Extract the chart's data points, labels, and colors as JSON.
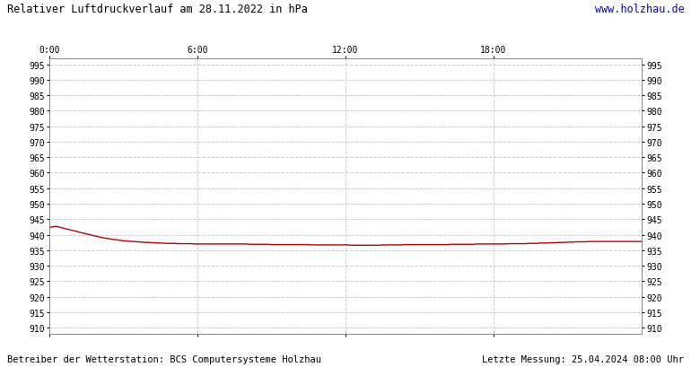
{
  "title": "Relativer Luftdruckverlauf am 28.11.2022 in hPa",
  "url": "www.holzhau.de",
  "footer_left": "Betreiber der Wetterstation: BCS Computersysteme Holzhau",
  "footer_right": "Letzte Messung: 25.04.2024 08:00 Uhr",
  "ylim": [
    908,
    997
  ],
  "yticks": [
    910,
    915,
    920,
    925,
    930,
    935,
    940,
    945,
    950,
    955,
    960,
    965,
    970,
    975,
    980,
    985,
    990,
    995
  ],
  "xtick_labels": [
    "0:00",
    "6:00",
    "12:00",
    "18:00"
  ],
  "line_color": "#bb0000",
  "bg_color": "#ffffff",
  "plot_bg_color": "#ffffff",
  "grid_color": "#cccccc",
  "title_color": "#000000",
  "url_color": "#0000cc",
  "pressure_values": [
    942.3,
    942.5,
    942.6,
    942.7,
    942.5,
    942.4,
    942.2,
    942.0,
    941.8,
    941.7,
    941.5,
    941.3,
    941.2,
    941.0,
    940.8,
    940.6,
    940.5,
    940.3,
    940.1,
    940.0,
    939.8,
    939.6,
    939.5,
    939.3,
    939.2,
    939.0,
    938.9,
    938.8,
    938.7,
    938.6,
    938.5,
    938.4,
    938.3,
    938.2,
    938.1,
    938.0,
    938.0,
    937.9,
    937.9,
    937.8,
    937.8,
    937.7,
    937.7,
    937.6,
    937.6,
    937.5,
    937.5,
    937.5,
    937.4,
    937.4,
    937.4,
    937.3,
    937.3,
    937.3,
    937.2,
    937.2,
    937.2,
    937.2,
    937.2,
    937.2,
    937.1,
    937.1,
    937.1,
    937.1,
    937.1,
    937.1,
    937.1,
    937.1,
    937.0,
    937.0,
    937.0,
    937.0,
    937.0,
    937.0,
    937.0,
    937.0,
    937.0,
    937.0,
    937.0,
    937.0,
    937.0,
    937.0,
    937.0,
    937.0,
    937.0,
    937.0,
    937.0,
    937.0,
    937.0,
    937.0,
    937.0,
    937.0,
    937.0,
    937.0,
    936.9,
    936.9,
    936.9,
    936.9,
    936.9,
    936.9,
    936.9,
    936.9,
    936.9,
    936.9,
    936.8,
    936.8,
    936.8,
    936.8,
    936.8,
    936.8,
    936.8,
    936.8,
    936.8,
    936.8,
    936.8,
    936.8,
    936.8,
    936.8,
    936.8,
    936.8,
    936.8,
    936.8,
    936.8,
    936.7,
    936.7,
    936.7,
    936.7,
    936.7,
    936.7,
    936.7,
    936.7,
    936.7,
    936.7,
    936.7,
    936.7,
    936.7,
    936.7,
    936.7,
    936.7,
    936.7,
    936.7,
    936.7,
    936.6,
    936.6,
    936.6,
    936.6,
    936.6,
    936.6,
    936.6,
    936.6,
    936.6,
    936.6,
    936.6,
    936.6,
    936.6,
    936.6,
    936.6,
    936.7,
    936.7,
    936.7,
    936.7,
    936.7,
    936.7,
    936.7,
    936.7,
    936.7,
    936.7,
    936.8,
    936.8,
    936.8,
    936.8,
    936.8,
    936.8,
    936.8,
    936.8,
    936.8,
    936.8,
    936.8,
    936.8,
    936.8,
    936.8,
    936.8,
    936.8,
    936.8,
    936.8,
    936.8,
    936.8,
    936.8,
    936.8,
    936.9,
    936.9,
    936.9,
    936.9,
    936.9,
    936.9,
    936.9,
    936.9,
    936.9,
    936.9,
    936.9,
    936.9,
    937.0,
    937.0,
    937.0,
    937.0,
    937.0,
    937.0,
    937.0,
    937.0,
    937.0,
    937.0,
    937.0,
    937.0,
    937.0,
    937.0,
    937.0,
    937.1,
    937.1,
    937.1,
    937.1,
    937.1,
    937.1,
    937.1,
    937.1,
    937.1,
    937.1,
    937.2,
    937.2,
    937.2,
    937.2,
    937.2,
    937.3,
    937.3,
    937.3,
    937.3,
    937.3,
    937.4,
    937.4,
    937.4,
    937.4,
    937.5,
    937.5,
    937.5,
    937.5,
    937.6,
    937.6,
    937.6,
    937.6,
    937.7,
    937.7,
    937.7,
    937.7,
    937.7,
    937.7,
    937.8,
    937.8,
    937.8,
    937.8,
    937.8,
    937.8,
    937.8,
    937.8,
    937.8,
    937.8,
    937.8,
    937.8,
    937.8,
    937.8,
    937.8,
    937.8,
    937.8,
    937.8,
    937.8,
    937.8,
    937.8,
    937.8,
    937.8,
    937.8,
    937.8,
    937.8
  ]
}
